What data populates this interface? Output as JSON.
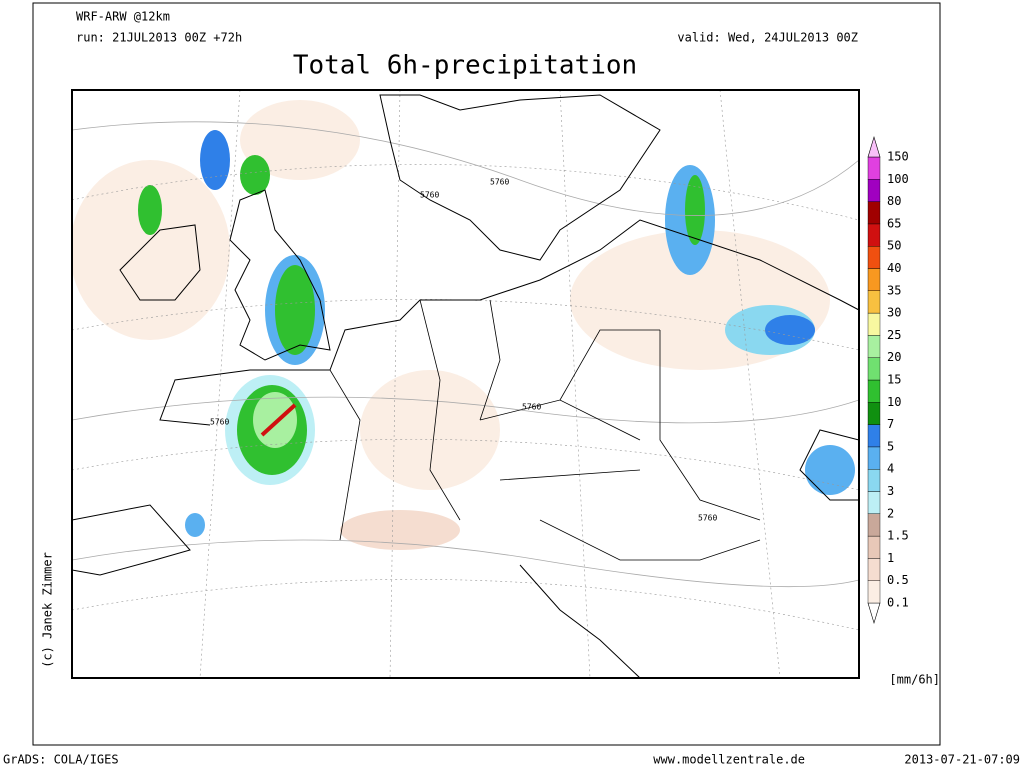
{
  "header": {
    "model": "WRF-ARW @12km",
    "run": "run: 21JUL2013 00Z +72h",
    "valid": "valid: Wed, 24JUL2013 00Z",
    "title": "Total 6h-precipitation"
  },
  "map": {
    "contour_labels": [
      "5760",
      "5760",
      "5760",
      "5760",
      "5760"
    ]
  },
  "legend": {
    "unit": "[mm/6h]",
    "levels": [
      {
        "label": "0.1",
        "color": "#fbeee4"
      },
      {
        "label": "0.5",
        "color": "#f5ddd0"
      },
      {
        "label": "1",
        "color": "#e8c8b8"
      },
      {
        "label": "1.5",
        "color": "#c9a89a"
      },
      {
        "label": "2",
        "color": "#bdeff5"
      },
      {
        "label": "3",
        "color": "#8ad8f0"
      },
      {
        "label": "4",
        "color": "#5ab0f0"
      },
      {
        "label": "5",
        "color": "#2f80e8"
      },
      {
        "label": "7",
        "color": "#109010"
      },
      {
        "label": "10",
        "color": "#30c030"
      },
      {
        "label": "15",
        "color": "#70e070"
      },
      {
        "label": "20",
        "color": "#a8f0a0"
      },
      {
        "label": "25",
        "color": "#f8f8a0"
      },
      {
        "label": "30",
        "color": "#f8c040"
      },
      {
        "label": "35",
        "color": "#f89820"
      },
      {
        "label": "40",
        "color": "#f05010"
      },
      {
        "label": "50",
        "color": "#d01010"
      },
      {
        "label": "65",
        "color": "#a00000"
      },
      {
        "label": "80",
        "color": "#a000c0"
      },
      {
        "label": "100",
        "color": "#e040e0"
      },
      {
        "label": "150",
        "color": "#f8c0f8"
      }
    ]
  },
  "credits": {
    "author": "(c) Janek Zimmer"
  },
  "footer": {
    "left": "GrADS: COLA/IGES",
    "center": "www.modellzentrale.de",
    "right": "2013-07-21-07:09"
  }
}
